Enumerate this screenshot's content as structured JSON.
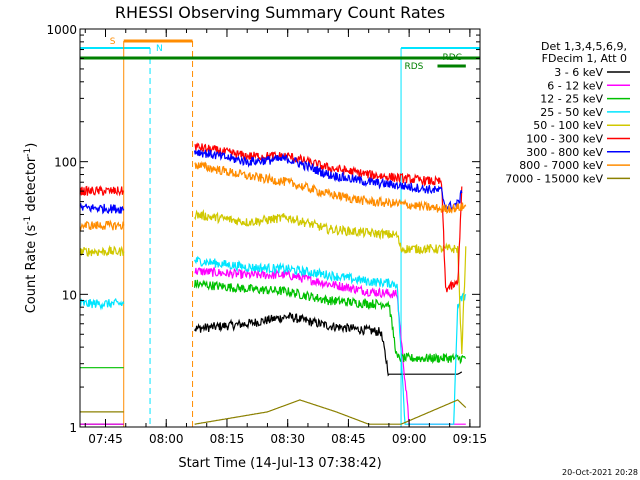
{
  "chart_data": {
    "type": "line",
    "title": "RHESSI Observing Summary Count Rates",
    "xlabel": "Start Time (14-Jul-13 07:38:42)",
    "ylabel_main": "Count Rate (s",
    "ylabel_sup1": "-1",
    "ylabel_mid": " detector",
    "ylabel_sup2": "-1",
    "ylabel_end": ")",
    "y_scale": "log",
    "ylim": [
      1,
      1000
    ],
    "xlim": [
      "07:38:42",
      "09:17:30"
    ],
    "x_ticks": [
      "07:45",
      "08:00",
      "08:15",
      "08:30",
      "08:45",
      "09:00",
      "09:15"
    ],
    "y_ticks": [
      {
        "value": 1,
        "label": "1"
      },
      {
        "value": 10,
        "label": "10"
      },
      {
        "value": 100,
        "label": "100"
      },
      {
        "value": 1000,
        "label": "1000"
      }
    ],
    "legend_header": [
      "Det 1,3,4,5,6,9,",
      "FDecim 1, Att 0"
    ],
    "legend_position": "right",
    "series": [
      {
        "name": "3 - 6 keV",
        "color": "#000000",
        "segments": [
          [
            [
              "07:38:42",
              1.05
            ],
            [
              "07:49:30",
              1.05
            ]
          ],
          [
            [
              "08:07:00",
              5.5
            ],
            [
              "08:20:00",
              6.0
            ],
            [
              "08:30:00",
              6.8
            ],
            [
              "08:40:00",
              5.8
            ],
            [
              "08:53:00",
              5.2
            ],
            [
              "08:55:00",
              2.5
            ],
            [
              "09:12:00",
              2.5
            ],
            [
              "09:13:00",
              2.6
            ]
          ]
        ]
      },
      {
        "name": "6 - 12 keV",
        "color": "#ff00ff",
        "segments": [
          [
            [
              "07:38:42",
              1.05
            ],
            [
              "07:49:30",
              1.05
            ]
          ],
          [
            [
              "08:07:00",
              15
            ],
            [
              "08:20:00",
              14
            ],
            [
              "08:30:00",
              14
            ],
            [
              "08:40:00",
              12
            ],
            [
              "08:50:00",
              10.5
            ],
            [
              "08:57:00",
              10
            ],
            [
              "09:00:00",
              1.05
            ],
            [
              "09:14:00",
              1.05
            ]
          ]
        ]
      },
      {
        "name": "12 - 25 keV",
        "color": "#00c000",
        "segments": [
          [
            [
              "07:38:42",
              2.8
            ],
            [
              "07:49:30",
              2.8
            ]
          ],
          [
            [
              "08:07:00",
              12
            ],
            [
              "08:20:00",
              11
            ],
            [
              "08:30:00",
              10.5
            ],
            [
              "08:40:00",
              9
            ],
            [
              "08:50:00",
              8.5
            ],
            [
              "08:55:00",
              8.5
            ],
            [
              "08:57:00",
              3.3
            ],
            [
              "09:14:00",
              3.3
            ]
          ]
        ]
      },
      {
        "name": "25 - 50 keV",
        "color": "#00e5ff",
        "segments": [
          [
            [
              "07:38:42",
              8.5
            ],
            [
              "07:49:30",
              8.5
            ]
          ],
          [
            [
              "08:07:00",
              18
            ],
            [
              "08:20:00",
              16
            ],
            [
              "08:30:00",
              15.5
            ],
            [
              "08:40:00",
              14
            ],
            [
              "08:50:00",
              12.5
            ],
            [
              "08:57:00",
              12
            ],
            [
              "08:59:00",
              1.05
            ],
            [
              "09:11:00",
              1.05
            ],
            [
              "09:12:00",
              8.5
            ],
            [
              "09:14:00",
              10
            ]
          ]
        ]
      },
      {
        "name": "50 - 100 keV",
        "color": "#d0c800",
        "segments": [
          [
            [
              "07:38:42",
              21
            ],
            [
              "07:49:30",
              21
            ]
          ],
          [
            [
              "08:07:00",
              40
            ],
            [
              "08:20:00",
              35
            ],
            [
              "08:30:00",
              38
            ],
            [
              "08:40:00",
              31
            ],
            [
              "08:50:00",
              29
            ],
            [
              "08:57:00",
              28
            ],
            [
              "08:58:00",
              22
            ],
            [
              "09:12:00",
              22
            ],
            [
              "09:13:00",
              3.5
            ],
            [
              "09:14:00",
              23
            ]
          ]
        ]
      },
      {
        "name": "100 - 300 keV",
        "color": "#ff0000",
        "segments": [
          [
            [
              "07:38:42",
              60
            ],
            [
              "07:49:30",
              60
            ]
          ],
          [
            [
              "08:07:00",
              130
            ],
            [
              "08:20:00",
              110
            ],
            [
              "08:30:00",
              110
            ],
            [
              "08:40:00",
              90
            ],
            [
              "08:50:00",
              80
            ],
            [
              "08:58:00",
              75
            ],
            [
              "09:08:00",
              70
            ],
            [
              "09:09:00",
              11
            ],
            [
              "09:12:00",
              12
            ],
            [
              "09:13:00",
              65
            ]
          ]
        ]
      },
      {
        "name": "300 - 800 keV",
        "color": "#0000ff",
        "segments": [
          [
            [
              "07:38:42",
              45
            ],
            [
              "07:49:30",
              44
            ]
          ],
          [
            [
              "08:07:00",
              120
            ],
            [
              "08:20:00",
              100
            ],
            [
              "08:30:00",
              105
            ],
            [
              "08:40:00",
              80
            ],
            [
              "08:50:00",
              70
            ],
            [
              "08:58:00",
              66
            ],
            [
              "09:08:00",
              60
            ],
            [
              "09:09:00",
              45
            ],
            [
              "09:12:00",
              48
            ],
            [
              "09:13:00",
              58
            ]
          ]
        ]
      },
      {
        "name": "800 - 7000 keV",
        "color": "#ff8c00",
        "segments": [
          [
            [
              "07:38:42",
              33
            ],
            [
              "07:49:30",
              33
            ]
          ],
          [
            [
              "08:07:00",
              95
            ],
            [
              "08:20:00",
              78
            ],
            [
              "08:30:00",
              70
            ],
            [
              "08:40:00",
              57
            ],
            [
              "08:50:00",
              50
            ],
            [
              "08:58:00",
              48
            ],
            [
              "09:08:00",
              44
            ],
            [
              "09:12:00",
              45
            ],
            [
              "09:14:00",
              46
            ]
          ]
        ]
      },
      {
        "name": "7000 - 15000 keV",
        "color": "#8b8000",
        "segments": [
          [
            [
              "07:38:42",
              1.3
            ],
            [
              "07:49:30",
              1.3
            ]
          ],
          [
            [
              "08:07:00",
              1.05
            ],
            [
              "08:25:00",
              1.3
            ],
            [
              "08:33:00",
              1.6
            ],
            [
              "08:42:00",
              1.3
            ],
            [
              "08:50:00",
              1.05
            ],
            [
              "08:58:00",
              1.05
            ],
            [
              "09:12:00",
              1.6
            ],
            [
              "09:14:00",
              1.4
            ]
          ]
        ]
      }
    ],
    "annotations": {
      "saa_label": "S",
      "night_label": "N",
      "rdc_label": "RDC",
      "rds_label": "RDS",
      "saa_start": "07:49:30",
      "saa_end": "08:06:30",
      "night_start": "07:38:42",
      "night_end": "07:56:00",
      "night2_start": "08:58:00",
      "night2_end": "09:17:30",
      "rdc_start": "07:38:42",
      "rdc_end": "09:17:30",
      "rds_start": "09:07:00",
      "rds_end": "09:14:00",
      "orange_color": "#ff8c00",
      "cyan_color": "#00e5ff",
      "green_color": "#008000"
    },
    "grid": false
  },
  "footer": {
    "timestamp": "20-Oct-2021 20:28"
  }
}
